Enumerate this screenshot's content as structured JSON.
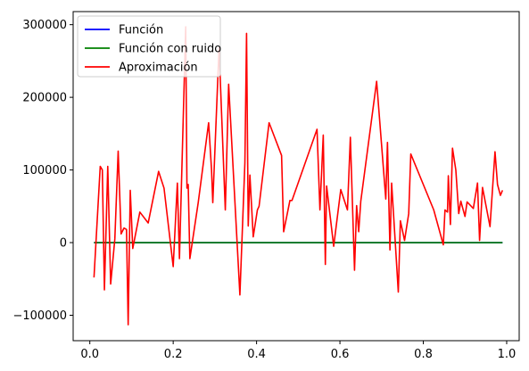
{
  "chart_data": {
    "type": "line",
    "xlim": [
      -0.04,
      1.03
    ],
    "ylim": [
      -135000,
      318000
    ],
    "x_ticks": [
      0.0,
      0.2,
      0.4,
      0.6,
      0.8,
      1.0
    ],
    "x_tick_labels": [
      "0.0",
      "0.2",
      "0.4",
      "0.6",
      "0.8",
      "1.0"
    ],
    "y_ticks": [
      -100000,
      0,
      100000,
      200000,
      300000
    ],
    "y_tick_labels": [
      "−100000",
      "0",
      "100000",
      "200000",
      "300000"
    ],
    "grid": false,
    "legend_position": "top-left",
    "series": [
      {
        "name": "Función",
        "color": "#0000ff",
        "x": [
          0.01,
          0.99
        ],
        "y": [
          0,
          0
        ]
      },
      {
        "name": "Función con ruido",
        "color": "#008000",
        "x": [
          0.01,
          0.99
        ],
        "y": [
          0,
          0
        ]
      },
      {
        "name": "Aproximación",
        "color": "#ff0000",
        "x": [
          0.01,
          0.025,
          0.03,
          0.035,
          0.043,
          0.05,
          0.06,
          0.068,
          0.075,
          0.082,
          0.088,
          0.092,
          0.097,
          0.103,
          0.12,
          0.14,
          0.165,
          0.178,
          0.2,
          0.21,
          0.215,
          0.23,
          0.233,
          0.236,
          0.24,
          0.26,
          0.285,
          0.292,
          0.295,
          0.31,
          0.325,
          0.333,
          0.36,
          0.372,
          0.376,
          0.38,
          0.384,
          0.392,
          0.402,
          0.406,
          0.43,
          0.46,
          0.465,
          0.48,
          0.485,
          0.545,
          0.552,
          0.56,
          0.565,
          0.568,
          0.585,
          0.602,
          0.618,
          0.625,
          0.635,
          0.64,
          0.645,
          0.65,
          0.688,
          0.71,
          0.714,
          0.72,
          0.724,
          0.74,
          0.745,
          0.755,
          0.765,
          0.77,
          0.825,
          0.848,
          0.852,
          0.858,
          0.86,
          0.865,
          0.87,
          0.878,
          0.885,
          0.89,
          0.9,
          0.905,
          0.92,
          0.93,
          0.935,
          0.942,
          0.96,
          0.972,
          0.978,
          0.985,
          0.99
        ],
        "y": [
          -48000,
          105000,
          100000,
          -65000,
          105000,
          -57000,
          5000,
          126000,
          12000,
          20000,
          18000,
          -113000,
          72000,
          -8000,
          42000,
          27000,
          98000,
          75000,
          -33000,
          82000,
          -22000,
          297000,
          75000,
          80000,
          -22000,
          55000,
          165000,
          100000,
          55000,
          268000,
          45000,
          218000,
          -72000,
          110000,
          288000,
          23000,
          93000,
          8000,
          45000,
          50000,
          165000,
          120000,
          15000,
          58000,
          58000,
          156000,
          45000,
          148000,
          -30000,
          78000,
          -5000,
          73000,
          45000,
          145000,
          -38000,
          51000,
          15000,
          57000,
          222000,
          60000,
          138000,
          -10000,
          82000,
          -68000,
          30000,
          3000,
          40000,
          122000,
          45000,
          -3000,
          45000,
          42000,
          92000,
          25000,
          130000,
          100000,
          40000,
          57000,
          36000,
          56000,
          47000,
          82000,
          3000,
          76000,
          22000,
          125000,
          80000,
          65000,
          72000
        ]
      }
    ]
  }
}
